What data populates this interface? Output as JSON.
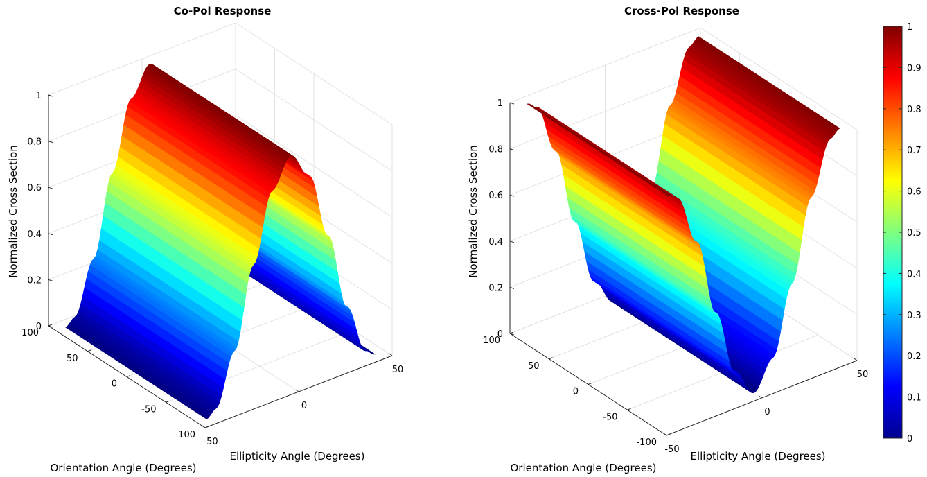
{
  "chart_data": [
    {
      "type": "surface",
      "title": "Co-Pol Response",
      "xlabel": "Ellipticity Angle (Degrees)",
      "ylabel": "Orientation Angle (Degrees)",
      "zlabel": "Normalized Cross Section",
      "xlim": [
        -50,
        50
      ],
      "ylim": [
        -100,
        100
      ],
      "zlim": [
        0,
        1
      ],
      "xticks": [
        "-50",
        "0",
        "50"
      ],
      "yticks": [
        "-100",
        "-50",
        "0",
        "50",
        "100"
      ],
      "zticks": [
        "0",
        "0.2",
        "0.4",
        "0.6",
        "0.8",
        "1"
      ],
      "surface": {
        "description": "cos^2 of ellipticity angle, constant along orientation",
        "x": [
          -45,
          -40,
          -30,
          -20,
          -10,
          0,
          10,
          20,
          30,
          40,
          45
        ],
        "z": [
          0,
          0.03,
          0.25,
          0.59,
          0.88,
          1.0,
          0.88,
          0.59,
          0.25,
          0.03,
          0
        ]
      },
      "grid": true
    },
    {
      "type": "surface",
      "title": "Cross-Pol Response",
      "xlabel": "Ellipticity Angle (Degrees)",
      "ylabel": "Orientation Angle (Degrees)",
      "zlabel": "Normalized Cross Section",
      "xlim": [
        -50,
        50
      ],
      "ylim": [
        -100,
        100
      ],
      "zlim": [
        0,
        1
      ],
      "xticks": [
        "-50",
        "0",
        "50"
      ],
      "yticks": [
        "-100",
        "-50",
        "0",
        "50",
        "100"
      ],
      "zticks": [
        "0",
        "0.2",
        "0.4",
        "0.6",
        "0.8",
        "1"
      ],
      "surface": {
        "description": "sin^2 of ellipticity angle, constant along orientation",
        "x": [
          -45,
          -40,
          -30,
          -20,
          -10,
          0,
          10,
          20,
          30,
          40,
          45
        ],
        "z": [
          1.0,
          0.97,
          0.75,
          0.41,
          0.12,
          0,
          0.12,
          0.41,
          0.75,
          0.97,
          1.0
        ]
      },
      "grid": true
    }
  ],
  "colorbar": {
    "colormap": "jet",
    "range": [
      0,
      1
    ],
    "ticks": [
      "0",
      "0.1",
      "0.2",
      "0.3",
      "0.4",
      "0.5",
      "0.6",
      "0.7",
      "0.8",
      "0.9",
      "1"
    ],
    "placement": "right"
  }
}
